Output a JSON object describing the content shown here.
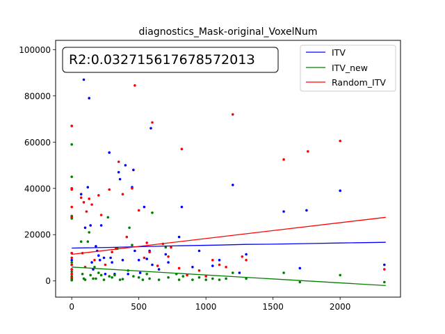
{
  "chart_data": {
    "type": "scatter",
    "title": "diagnostics_Mask-original_VoxelNum",
    "xlabel": "",
    "ylabel": "",
    "xlim": [
      -120,
      2450
    ],
    "ylim": [
      -7000,
      104000
    ],
    "xticks": [
      0,
      500,
      1000,
      1500,
      2000
    ],
    "xtick_labels": [
      "0",
      "500",
      "1000",
      "1500",
      "2000"
    ],
    "yticks": [
      0,
      20000,
      40000,
      60000,
      80000,
      100000
    ],
    "ytick_labels": [
      "0",
      "20000",
      "40000",
      "60000",
      "80000",
      "100000"
    ],
    "grid": false,
    "legend_position": "top-right",
    "annotation": "R2:0.03271561767857201З",
    "series": [
      {
        "name": "ITV",
        "color": "#0000ff",
        "points": [
          [
            0,
            67000
          ],
          [
            0,
            40000
          ],
          [
            0,
            28000
          ],
          [
            0,
            12000
          ],
          [
            0,
            9000
          ],
          [
            0,
            7000
          ],
          [
            0,
            5000
          ],
          [
            0,
            3000
          ],
          [
            0,
            1500
          ],
          [
            0,
            500
          ],
          [
            70,
            37500
          ],
          [
            90,
            87000
          ],
          [
            100,
            23000
          ],
          [
            120,
            40500
          ],
          [
            130,
            79000
          ],
          [
            140,
            24000
          ],
          [
            150,
            8000
          ],
          [
            160,
            5000
          ],
          [
            180,
            15000
          ],
          [
            190,
            13000
          ],
          [
            200,
            11000
          ],
          [
            210,
            9000
          ],
          [
            220,
            24000
          ],
          [
            240,
            10000
          ],
          [
            250,
            3000
          ],
          [
            280,
            55500
          ],
          [
            290,
            10000
          ],
          [
            300,
            8000
          ],
          [
            320,
            3000
          ],
          [
            350,
            47000
          ],
          [
            360,
            44000
          ],
          [
            380,
            9000
          ],
          [
            400,
            50000
          ],
          [
            420,
            3000
          ],
          [
            450,
            40500
          ],
          [
            460,
            48000
          ],
          [
            470,
            13000
          ],
          [
            500,
            9000
          ],
          [
            510,
            3500
          ],
          [
            540,
            32000
          ],
          [
            560,
            9500
          ],
          [
            580,
            13000
          ],
          [
            590,
            66000
          ],
          [
            600,
            7000
          ],
          [
            650,
            5000
          ],
          [
            700,
            11500
          ],
          [
            720,
            8000
          ],
          [
            800,
            19000
          ],
          [
            820,
            32000
          ],
          [
            900,
            6000
          ],
          [
            950,
            13000
          ],
          [
            1050,
            6500
          ],
          [
            1100,
            9000
          ],
          [
            1200,
            41500
          ],
          [
            1250,
            3500
          ],
          [
            1300,
            11500
          ],
          [
            1580,
            30000
          ],
          [
            1700,
            5500
          ],
          [
            1750,
            30500
          ],
          [
            2000,
            39000
          ],
          [
            2330,
            7000
          ]
        ]
      },
      {
        "name": "ITV_new",
        "color": "#008000",
        "points": [
          [
            0,
            59000
          ],
          [
            0,
            45000
          ],
          [
            0,
            28000
          ],
          [
            0,
            27000
          ],
          [
            0,
            8000
          ],
          [
            0,
            4000
          ],
          [
            0,
            2000
          ],
          [
            0,
            1000
          ],
          [
            0,
            300
          ],
          [
            70,
            17000
          ],
          [
            80,
            3000
          ],
          [
            90,
            1000
          ],
          [
            100,
            500
          ],
          [
            120,
            17000
          ],
          [
            130,
            21000
          ],
          [
            140,
            2500
          ],
          [
            160,
            1000
          ],
          [
            170,
            6000
          ],
          [
            180,
            1000
          ],
          [
            200,
            3500
          ],
          [
            220,
            2500
          ],
          [
            240,
            500
          ],
          [
            270,
            27500
          ],
          [
            280,
            2000
          ],
          [
            300,
            1500
          ],
          [
            320,
            2500
          ],
          [
            340,
            14000
          ],
          [
            360,
            500
          ],
          [
            380,
            800
          ],
          [
            420,
            4500
          ],
          [
            430,
            23000
          ],
          [
            450,
            15500
          ],
          [
            460,
            2000
          ],
          [
            500,
            1500
          ],
          [
            530,
            500
          ],
          [
            560,
            3000
          ],
          [
            580,
            1000
          ],
          [
            600,
            29500
          ],
          [
            650,
            500
          ],
          [
            700,
            14500
          ],
          [
            720,
            1500
          ],
          [
            780,
            3000
          ],
          [
            800,
            500
          ],
          [
            830,
            2000
          ],
          [
            900,
            500
          ],
          [
            950,
            1500
          ],
          [
            1000,
            500
          ],
          [
            1050,
            1000
          ],
          [
            1100,
            500
          ],
          [
            1150,
            1000
          ],
          [
            1200,
            3500
          ],
          [
            1300,
            1000
          ],
          [
            1580,
            3500
          ],
          [
            1700,
            -500
          ],
          [
            2000,
            2500
          ],
          [
            2330,
            -500
          ]
        ]
      },
      {
        "name": "Random_ITV",
        "color": "#ff0000",
        "points": [
          [
            0,
            67000
          ],
          [
            0,
            40000
          ],
          [
            0,
            39500
          ],
          [
            0,
            32000
          ],
          [
            0,
            27500
          ],
          [
            0,
            12000
          ],
          [
            0,
            10000
          ],
          [
            0,
            7000
          ],
          [
            0,
            5000
          ],
          [
            0,
            3000
          ],
          [
            0,
            1500
          ],
          [
            70,
            36000
          ],
          [
            80,
            12000
          ],
          [
            90,
            34000
          ],
          [
            100,
            6000
          ],
          [
            110,
            30000
          ],
          [
            130,
            35500
          ],
          [
            150,
            33000
          ],
          [
            170,
            9000
          ],
          [
            200,
            37000
          ],
          [
            220,
            28500
          ],
          [
            250,
            7000
          ],
          [
            280,
            39500
          ],
          [
            300,
            12500
          ],
          [
            330,
            14000
          ],
          [
            350,
            51500
          ],
          [
            380,
            37500
          ],
          [
            410,
            19000
          ],
          [
            450,
            40000
          ],
          [
            470,
            84500
          ],
          [
            500,
            30500
          ],
          [
            540,
            10000
          ],
          [
            560,
            16500
          ],
          [
            580,
            12500
          ],
          [
            600,
            68500
          ],
          [
            640,
            6500
          ],
          [
            680,
            16000
          ],
          [
            720,
            10500
          ],
          [
            740,
            14500
          ],
          [
            800,
            5500
          ],
          [
            820,
            57000
          ],
          [
            860,
            2500
          ],
          [
            950,
            4500
          ],
          [
            1000,
            2000
          ],
          [
            1050,
            9000
          ],
          [
            1100,
            7000
          ],
          [
            1150,
            6000
          ],
          [
            1200,
            72000
          ],
          [
            1270,
            10500
          ],
          [
            1300,
            9000
          ],
          [
            1580,
            52500
          ],
          [
            1760,
            56000
          ],
          [
            2000,
            60500
          ],
          [
            2330,
            5000
          ]
        ]
      }
    ],
    "fit_lines": [
      {
        "name": "ITV",
        "color": "#0000ff",
        "points": [
          [
            0,
            14200
          ],
          [
            300,
            14500
          ],
          [
            500,
            14800
          ],
          [
            800,
            15200
          ],
          [
            1100,
            15500
          ],
          [
            1300,
            15800
          ],
          [
            1500,
            15900
          ],
          [
            1800,
            16200
          ],
          [
            2000,
            16400
          ],
          [
            2340,
            16700
          ]
        ]
      },
      {
        "name": "ITV_new",
        "color": "#008000",
        "points": [
          [
            0,
            6000
          ],
          [
            2340,
            -2000
          ]
        ]
      },
      {
        "name": "Random_ITV",
        "color": "#ff0000",
        "points": [
          [
            0,
            11500
          ],
          [
            2340,
            27500
          ]
        ]
      }
    ]
  }
}
